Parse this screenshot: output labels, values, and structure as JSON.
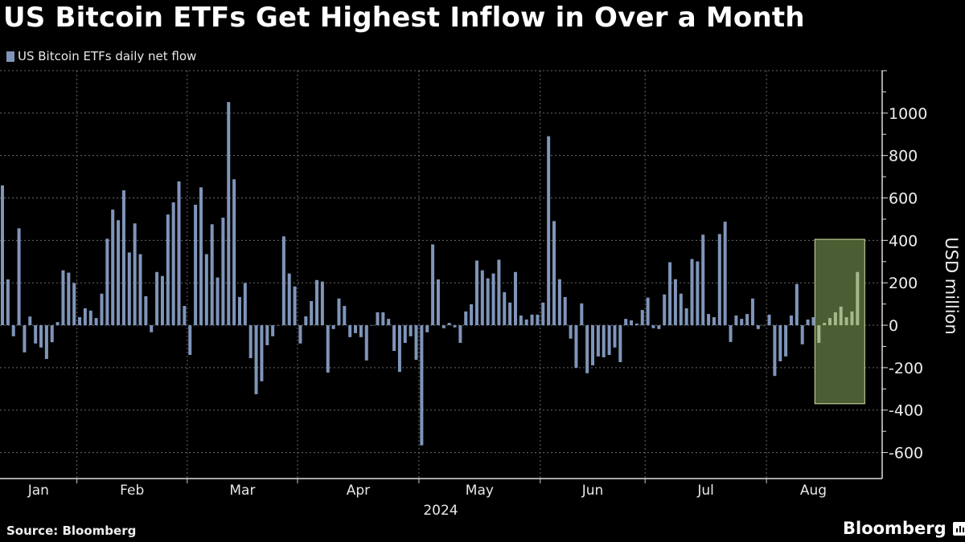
{
  "title": "US Bitcoin ETFs Get Highest Inflow in Over a Month",
  "source": "Source: Bloomberg",
  "logo_text": "Bloomberg",
  "colors": {
    "bar": "#7f95ba",
    "highlight_bar": "#a3b98c",
    "highlight_fill": "#4b5d33",
    "highlight_border": "#d4e6a5",
    "background": "#000000"
  },
  "chart_data": {
    "type": "bar",
    "title": "US Bitcoin ETFs Get Highest Inflow in Over a Month",
    "legend": [
      "US Bitcoin ETFs daily net flow"
    ],
    "legend_position": "top-left",
    "ylabel": "USD million",
    "xlabel": "2024",
    "ylim": [
      -700,
      1200
    ],
    "y_axis_side": "right",
    "yticks": [
      1000,
      800,
      600,
      400,
      200,
      0,
      -200,
      -400,
      -600
    ],
    "grid": true,
    "months": [
      {
        "label": "Jan",
        "days": 14
      },
      {
        "label": "Feb",
        "days": 20
      },
      {
        "label": "Mar",
        "days": 20
      },
      {
        "label": "Apr",
        "days": 22
      },
      {
        "label": "May",
        "days": 22
      },
      {
        "label": "Jun",
        "days": 19
      },
      {
        "label": "Jul",
        "days": 22
      },
      {
        "label": "Aug",
        "days": 17
      }
    ],
    "series": [
      {
        "name": "US Bitcoin ETFs daily net flow",
        "values": [
          659,
          216,
          -52,
          457,
          -128,
          41,
          -86,
          -105,
          -159,
          -80,
          15,
          259,
          248,
          199,
          38,
          80,
          69,
          34,
          149,
          408,
          545,
          495,
          636,
          343,
          480,
          335,
          137,
          -33,
          251,
          232,
          522,
          579,
          678,
          91,
          -140,
          568,
          650,
          335,
          476,
          225,
          507,
          1052,
          688,
          133,
          199,
          -155,
          -325,
          -264,
          -94,
          -52,
          0,
          419,
          244,
          183,
          -86,
          42,
          114,
          213,
          206,
          -223,
          -18,
          126,
          91,
          -56,
          -37,
          -56,
          -166,
          0,
          61,
          61,
          30,
          -121,
          -220,
          -83,
          -52,
          -163,
          -566,
          -33,
          381,
          216,
          -14,
          11,
          -10,
          -83,
          65,
          99,
          305,
          259,
          221,
          244,
          309,
          156,
          107,
          251,
          46,
          27,
          50,
          50,
          107,
          891,
          491,
          217,
          133,
          -63,
          -201,
          103,
          -226,
          -189,
          -147,
          -151,
          -140,
          -105,
          -174,
          30,
          23,
          8,
          72,
          130,
          -14,
          -18,
          145,
          297,
          217,
          149,
          80,
          312,
          301,
          427,
          53,
          38,
          430,
          488,
          -79,
          46,
          30,
          53,
          126,
          -18,
          0,
          50,
          -239,
          -170,
          -147,
          46,
          194,
          -90,
          27,
          38,
          -83,
          11,
          34,
          61,
          88,
          38,
          65,
          251
        ]
      }
    ],
    "highlight": {
      "from_bar": 149,
      "to_bar": 156,
      "y_range": [
        -370,
        405
      ]
    }
  }
}
